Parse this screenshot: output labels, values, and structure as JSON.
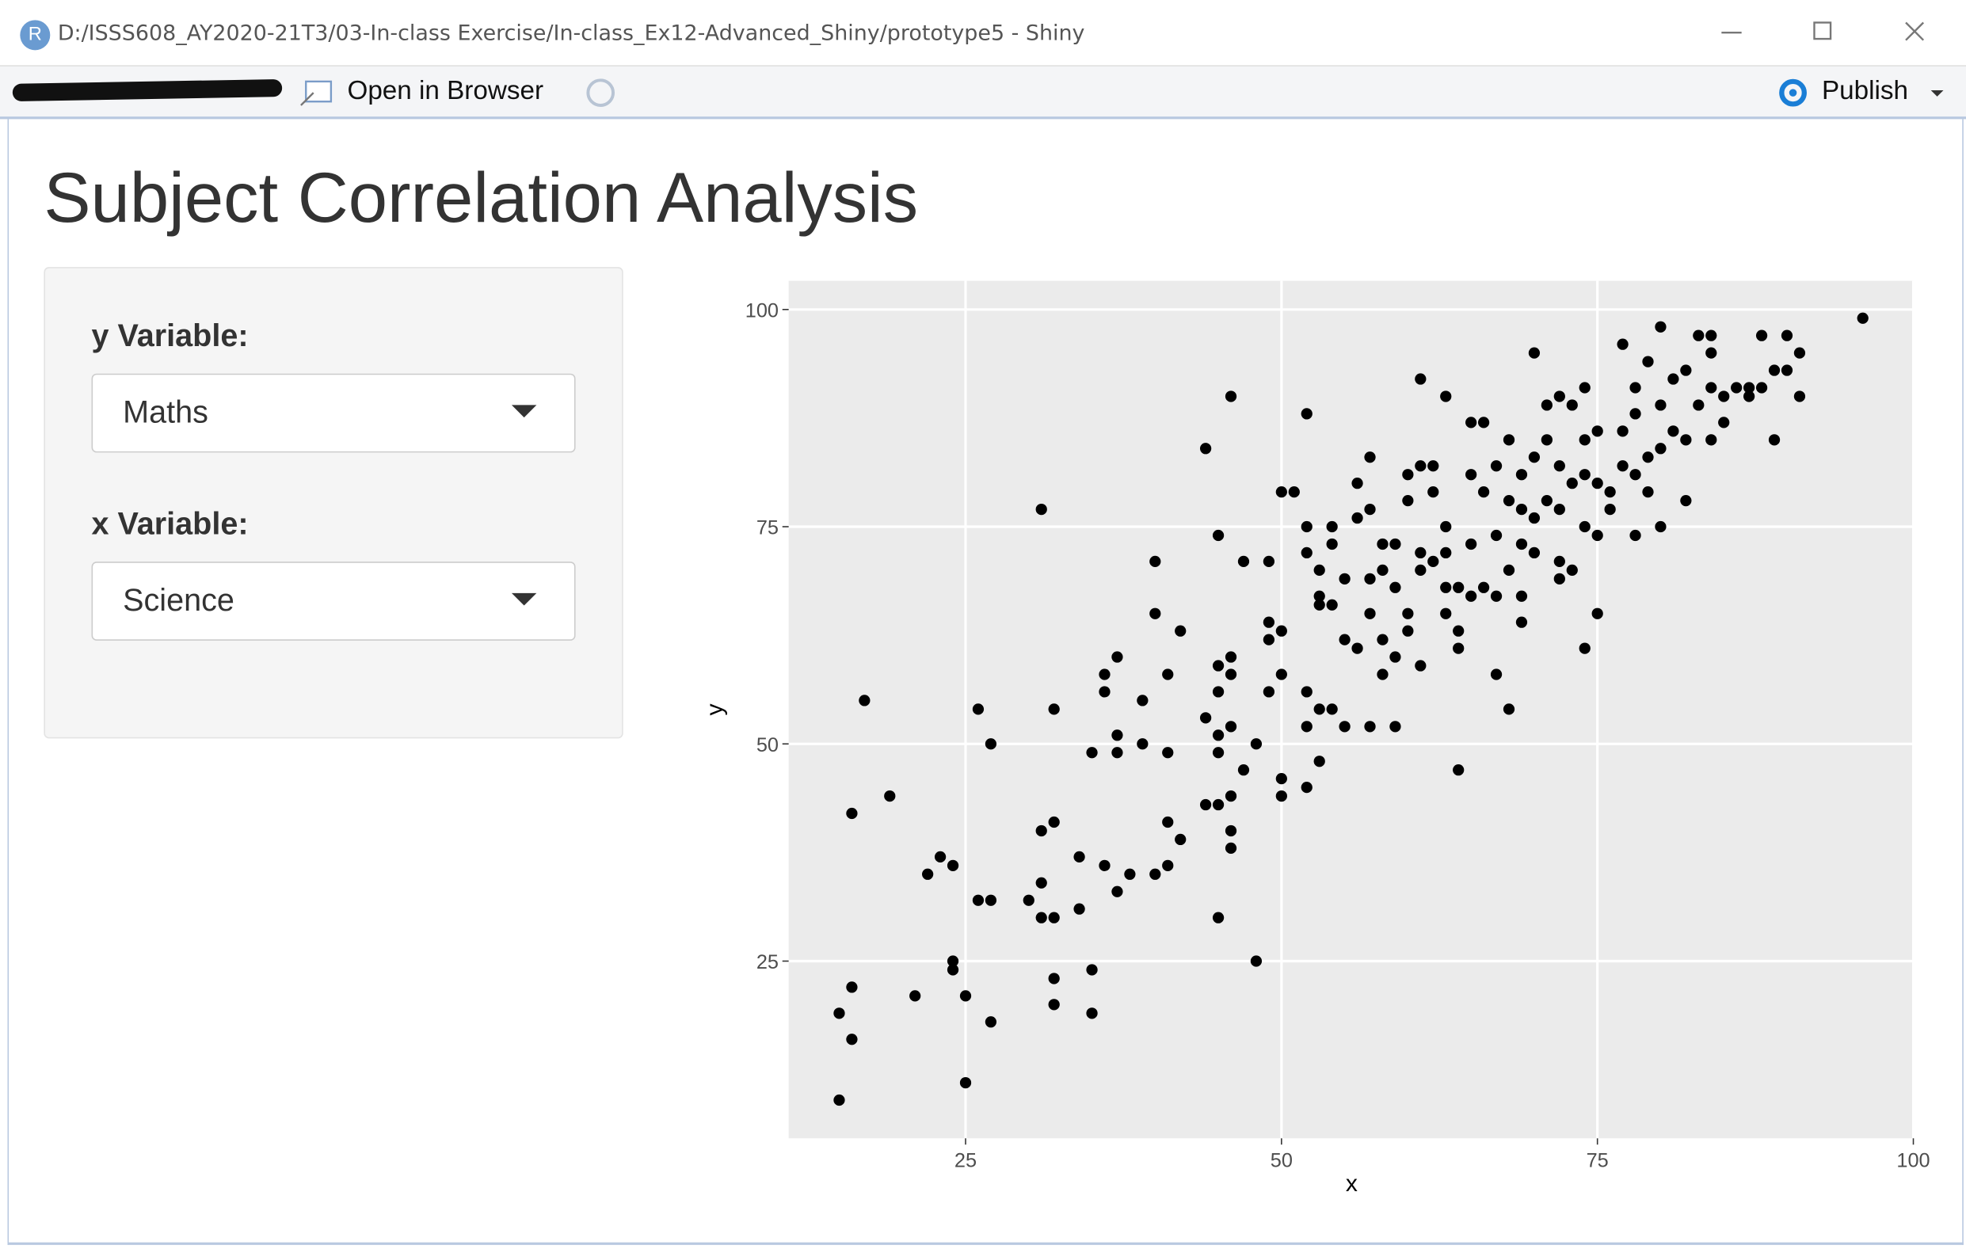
{
  "window": {
    "title": "D:/ISSS608_AY2020-21T3/03-In-class Exercise/In-class_Ex12-Advanced_Shiny/prototype5 - Shiny"
  },
  "toolbar": {
    "open_in_browser": "Open in Browser",
    "publish": "Publish"
  },
  "app": {
    "title": "Subject Correlation Analysis",
    "y_label": "y Variable:",
    "y_value": "Maths",
    "x_label": "x Variable:",
    "x_value": "Science"
  },
  "chart_data": {
    "type": "scatter",
    "x_label": "x",
    "y_label": "y",
    "color": "#000000",
    "grid": true,
    "xlim": [
      11,
      100
    ],
    "ylim": [
      4.6,
      103.3
    ],
    "xticks": [
      25,
      50,
      75,
      100
    ],
    "yticks": [
      25,
      50,
      75,
      100
    ],
    "x": [
      15,
      15,
      16,
      16,
      16,
      17,
      19,
      21,
      22,
      23,
      24,
      24,
      24,
      25,
      25,
      26,
      26,
      27,
      27,
      27,
      30,
      31,
      31,
      31,
      31,
      32,
      32,
      32,
      32,
      32,
      34,
      34,
      35,
      35,
      35,
      36,
      36,
      36,
      37,
      37,
      37,
      37,
      38,
      39,
      39,
      40,
      40,
      40,
      41,
      41,
      41,
      41,
      42,
      42,
      44,
      44,
      44,
      45,
      45,
      45,
      45,
      45,
      45,
      45,
      46,
      46,
      46,
      46,
      46,
      46,
      46,
      47,
      47,
      48,
      48,
      49,
      49,
      49,
      49,
      50,
      50,
      50,
      50,
      50,
      51,
      52,
      52,
      52,
      52,
      52,
      52,
      53,
      53,
      53,
      53,
      53,
      54,
      54,
      54,
      54,
      55,
      55,
      55,
      56,
      56,
      56,
      57,
      57,
      57,
      57,
      57,
      58,
      58,
      58,
      58,
      59,
      59,
      59,
      59,
      60,
      60,
      60,
      60,
      61,
      61,
      61,
      61,
      61,
      62,
      62,
      62,
      63,
      63,
      63,
      63,
      63,
      64,
      64,
      64,
      64,
      65,
      65,
      65,
      65,
      66,
      66,
      66,
      67,
      67,
      67,
      67,
      68,
      68,
      68,
      68,
      69,
      69,
      69,
      69,
      69,
      70,
      70,
      70,
      70,
      71,
      71,
      71,
      72,
      72,
      72,
      72,
      72,
      73,
      73,
      73,
      74,
      74,
      74,
      74,
      74,
      75,
      75,
      75,
      75,
      76,
      76,
      77,
      77,
      77,
      78,
      78,
      78,
      78,
      79,
      79,
      79,
      80,
      80,
      80,
      80,
      81,
      81,
      82,
      82,
      82,
      83,
      83,
      84,
      84,
      84,
      84,
      85,
      85,
      86,
      87,
      87,
      88,
      88,
      89,
      89,
      90,
      90,
      91,
      91,
      96
    ],
    "y": [
      9,
      19,
      16,
      22,
      42,
      55,
      44,
      21,
      35,
      37,
      36,
      25,
      24,
      21,
      11,
      54,
      32,
      32,
      50,
      18,
      32,
      34,
      30,
      40,
      77,
      41,
      30,
      54,
      23,
      20,
      31,
      37,
      24,
      19,
      49,
      36,
      56,
      58,
      60,
      51,
      49,
      33,
      35,
      50,
      55,
      35,
      65,
      71,
      36,
      41,
      49,
      58,
      39,
      63,
      43,
      53,
      84,
      30,
      43,
      49,
      51,
      56,
      59,
      74,
      40,
      38,
      44,
      52,
      58,
      60,
      90,
      47,
      71,
      25,
      50,
      56,
      62,
      64,
      71,
      44,
      46,
      58,
      63,
      79,
      79,
      45,
      52,
      56,
      72,
      75,
      88,
      48,
      54,
      67,
      66,
      70,
      54,
      66,
      75,
      73,
      52,
      62,
      69,
      61,
      76,
      80,
      52,
      65,
      69,
      77,
      83,
      58,
      62,
      70,
      73,
      52,
      60,
      68,
      73,
      63,
      65,
      78,
      81,
      59,
      70,
      72,
      82,
      92,
      71,
      79,
      82,
      65,
      68,
      72,
      75,
      90,
      47,
      61,
      63,
      68,
      67,
      73,
      81,
      87,
      68,
      79,
      87,
      58,
      67,
      74,
      82,
      54,
      70,
      78,
      85,
      64,
      67,
      73,
      77,
      81,
      72,
      76,
      83,
      95,
      78,
      85,
      89,
      69,
      71,
      77,
      82,
      90,
      70,
      80,
      89,
      61,
      75,
      81,
      85,
      91,
      65,
      74,
      80,
      86,
      77,
      79,
      82,
      86,
      96,
      74,
      81,
      88,
      91,
      79,
      83,
      94,
      75,
      84,
      89,
      98,
      86,
      92,
      78,
      85,
      93,
      89,
      97,
      85,
      91,
      95,
      97,
      87,
      90,
      91,
      90,
      91,
      91,
      97,
      85,
      93,
      93,
      97,
      90,
      95,
      99
    ]
  }
}
